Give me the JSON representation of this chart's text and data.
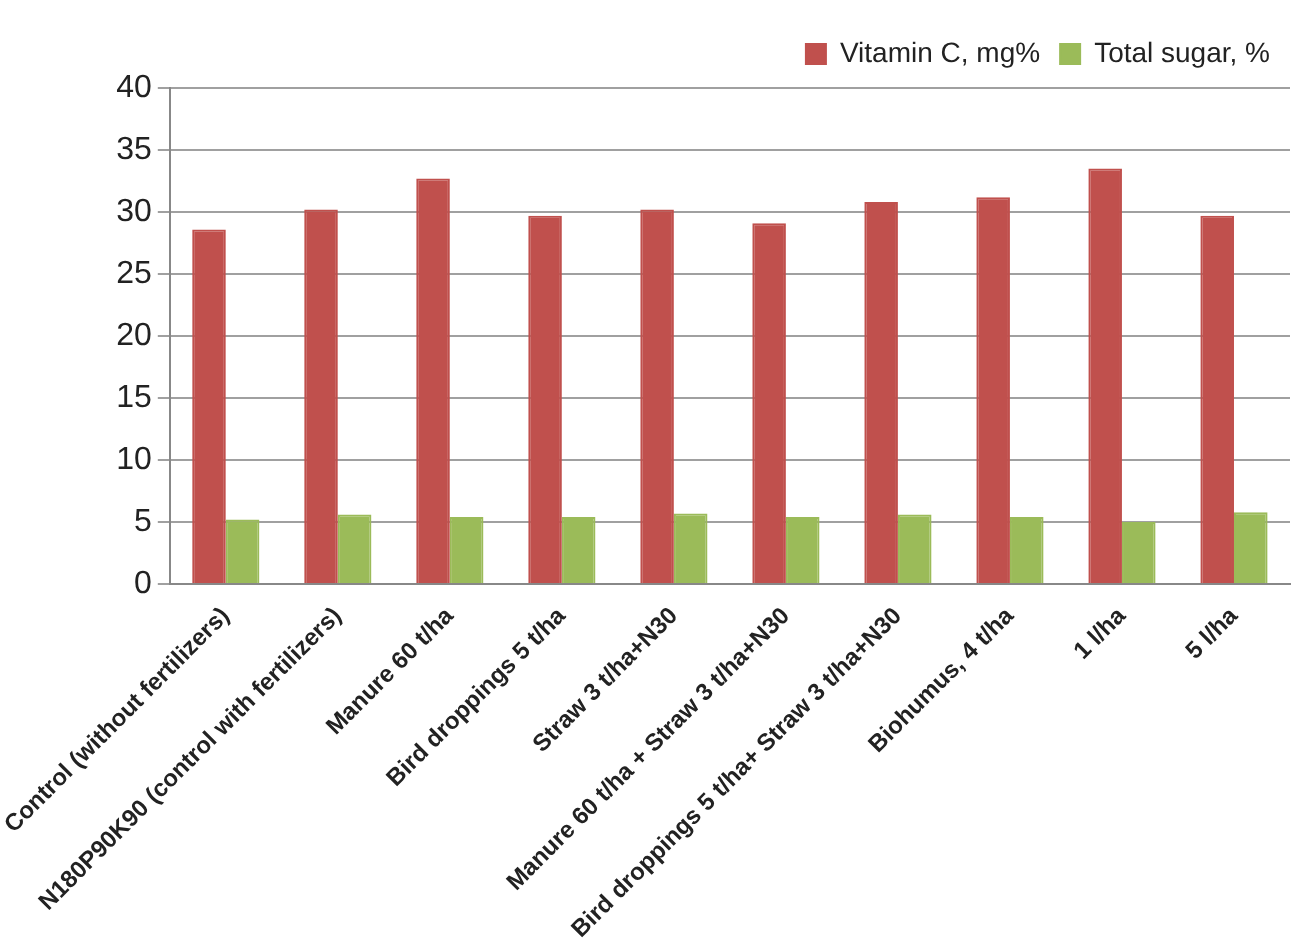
{
  "chart_data": {
    "type": "bar",
    "categories": [
      "Control (without fertilizers)",
      "N180P90K90 (control with fertilizers)",
      "Manure 60 t/ha",
      "Bird droppings 5 t/ha",
      "Straw 3 t/ha+N30",
      "Manure 60 t/ha + Straw 3 t/ha+N30",
      "Bird droppings 5 t/ha+ Straw 3 t/ha+N30",
      "Biohumus, 4 t/ha",
      "1 l/ha",
      "5 l/ha"
    ],
    "series": [
      {
        "name": "Vitamin C, mg%",
        "color": "#c0504d",
        "values": [
          28.6,
          30.2,
          32.7,
          29.7,
          30.2,
          29.1,
          30.8,
          31.2,
          33.5,
          29.7
        ]
      },
      {
        "name": "Total sugar, %",
        "color": "#9bbb59",
        "values": [
          5.2,
          5.6,
          5.4,
          5.4,
          5.7,
          5.4,
          5.6,
          5.4,
          5.0,
          5.8
        ]
      }
    ],
    "ylim": [
      0,
      40
    ],
    "yticks": [
      0,
      5,
      10,
      15,
      20,
      25,
      30,
      35,
      40
    ],
    "grid": "y",
    "legend": "top right"
  }
}
